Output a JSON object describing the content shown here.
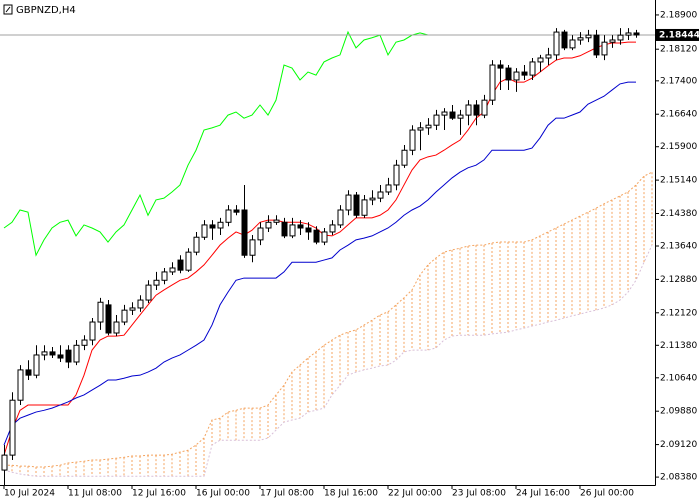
{
  "chart_data": {
    "type": "candlestick",
    "title": "GBPNZD,H4",
    "categories": [
      "10 Jul 2024",
      null,
      null,
      null,
      null,
      null,
      null,
      null,
      "11 Jul 08:00",
      null,
      null,
      null,
      null,
      null,
      null,
      null,
      "12 Jul 16:00",
      null,
      null,
      null,
      null,
      null,
      null,
      null,
      "16 Jul 00:00",
      null,
      null,
      null,
      null,
      null,
      null,
      null,
      "17 Jul 08:00",
      null,
      null,
      null,
      null,
      null,
      null,
      null,
      "18 Jul 16:00",
      null,
      null,
      null,
      null,
      null,
      null,
      null,
      "22 Jul 00:00",
      null,
      null,
      null,
      null,
      null,
      null,
      null,
      "23 Jul 08:00",
      null,
      null,
      null,
      null,
      null,
      null,
      null,
      "24 Jul 16:00",
      null,
      null,
      null,
      null,
      null,
      null,
      null,
      "26 Jul 00:00",
      null,
      null,
      null,
      null,
      null,
      null,
      null,
      null,
      null
    ],
    "open": [
      2.0854,
      2.0888,
      2.1013,
      2.1082,
      2.107,
      2.1116,
      2.1123,
      2.1116,
      2.1127,
      2.11,
      2.1138,
      2.115,
      2.1191,
      2.123,
      2.1166,
      2.1191,
      2.1218,
      2.1223,
      2.1241,
      2.1275,
      2.1286,
      2.1305,
      2.1332,
      2.1309,
      2.135,
      2.1384,
      2.1412,
      2.1405,
      2.1418,
      2.1446,
      2.1446,
      2.1343,
      2.1378,
      2.1405,
      2.1418,
      2.1418,
      2.1387,
      2.1412,
      2.1405,
      2.14,
      2.1373,
      2.1396,
      2.1412,
      2.1446,
      2.148,
      2.1434,
      2.1469,
      2.1473,
      2.1487,
      2.1503,
      2.1548,
      2.1582,
      2.1628,
      2.1633,
      2.1639,
      2.1662,
      2.1669,
      2.1655,
      2.1662,
      2.1685,
      2.1662,
      2.1696,
      2.1776,
      2.1769,
      2.1742,
      2.176,
      2.1753,
      2.1783,
      2.1792,
      2.1799,
      2.1851,
      2.1815,
      2.1833,
      2.1838,
      2.1844,
      2.1799,
      2.1828,
      2.1833,
      2.1844,
      2.1849,
      null,
      null
    ],
    "high": [
      2.0911,
      2.1031,
      2.1093,
      2.1104,
      2.1138,
      2.1138,
      2.1134,
      2.1138,
      2.1138,
      2.115,
      2.1161,
      2.12,
      2.1246,
      2.1241,
      2.1207,
      2.123,
      2.1236,
      2.1252,
      2.1286,
      2.1305,
      2.1314,
      2.1327,
      2.1343,
      2.1359,
      2.1396,
      2.1423,
      2.1423,
      2.1428,
      2.1457,
      2.1457,
      2.1503,
      2.1389,
      2.1418,
      2.1434,
      2.1434,
      2.1428,
      2.1428,
      2.1423,
      2.1418,
      2.1409,
      2.1405,
      2.1423,
      2.1457,
      2.1491,
      2.1487,
      2.148,
      2.1491,
      2.1503,
      2.1519,
      2.156,
      2.1594,
      2.1639,
      2.1646,
      2.1655,
      2.1674,
      2.1678,
      2.1685,
      2.1674,
      2.1696,
      2.1696,
      2.1708,
      2.1787,
      2.1787,
      2.1776,
      2.1769,
      2.1776,
      2.1792,
      2.1799,
      2.1815,
      2.186,
      2.1856,
      2.1844,
      2.1851,
      2.1856,
      2.1856,
      2.1844,
      2.1844,
      2.186,
      2.186,
      2.1856,
      null,
      null
    ],
    "low": [
      2.082,
      2.0877,
      2.1002,
      2.1059,
      2.1063,
      2.1104,
      2.1109,
      2.11,
      2.1086,
      2.1093,
      2.1127,
      2.1138,
      2.1173,
      2.1161,
      2.1159,
      2.1184,
      2.1207,
      2.1214,
      2.1234,
      2.1264,
      2.1277,
      2.1298,
      2.1302,
      2.1305,
      2.1343,
      2.1378,
      2.1378,
      2.1389,
      2.1409,
      2.1434,
      2.1337,
      2.1327,
      2.1366,
      2.1396,
      2.1412,
      2.1382,
      2.1382,
      2.1389,
      2.1378,
      2.1368,
      2.1366,
      2.1389,
      2.1405,
      2.1434,
      2.1428,
      2.1428,
      2.1457,
      2.1464,
      2.148,
      2.1491,
      2.1542,
      2.1571,
      2.1582,
      2.1617,
      2.1628,
      2.1628,
      2.1651,
      2.1617,
      2.1639,
      2.1639,
      2.1655,
      2.1685,
      2.1719,
      2.1719,
      2.1715,
      2.1742,
      2.1742,
      2.176,
      2.1776,
      2.1787,
      2.181,
      2.181,
      2.1822,
      2.1828,
      2.1792,
      2.1787,
      2.1815,
      2.1822,
      2.1833,
      2.1838,
      null,
      null
    ],
    "close": [
      2.0888,
      2.1013,
      2.1082,
      2.107,
      2.1116,
      2.1123,
      2.1116,
      2.1109,
      2.11,
      2.1138,
      2.115,
      2.1191,
      2.1236,
      2.1166,
      2.1191,
      2.1218,
      2.1223,
      2.1241,
      2.1275,
      2.1286,
      2.1305,
      2.1314,
      2.1309,
      2.135,
      2.1384,
      2.1412,
      2.1405,
      2.1418,
      2.1446,
      2.1441,
      2.1343,
      2.1378,
      2.1405,
      2.1418,
      2.1423,
      2.1387,
      2.1412,
      2.1405,
      2.1396,
      2.1373,
      2.1396,
      2.1412,
      2.1446,
      2.148,
      2.1434,
      2.1469,
      2.1473,
      2.1487,
      2.1503,
      2.1548,
      2.1582,
      2.1628,
      2.1633,
      2.1639,
      2.1662,
      2.1669,
      2.1655,
      2.1662,
      2.1685,
      2.1662,
      2.1696,
      2.1776,
      2.1769,
      2.1742,
      2.176,
      2.1753,
      2.1783,
      2.1792,
      2.1799,
      2.1851,
      2.1815,
      2.1833,
      2.1838,
      2.1844,
      2.1799,
      2.1828,
      2.1833,
      2.1844,
      2.1849,
      2.18444,
      null,
      null
    ],
    "bull_color": "#ffffff",
    "bear_color": "#000000",
    "series": [
      {
        "color": "#ff0000",
        "values": [
          2.0888,
          2.0945,
          2.099,
          2.1002,
          2.1002,
          2.1002,
          2.1002,
          2.1002,
          2.1002,
          2.1025,
          2.107,
          2.1127,
          2.115,
          2.1159,
          2.1159,
          2.1161,
          2.1184,
          2.1207,
          2.123,
          2.1252,
          2.1264,
          2.1275,
          2.1286,
          2.1291,
          2.1305,
          2.1321,
          2.1343,
          2.1366,
          2.1382,
          2.1396,
          2.1389,
          2.14,
          2.1418,
          2.1423,
          2.1423,
          2.1418,
          2.1418,
          2.1418,
          2.1414,
          2.1405,
          2.1389,
          2.1387,
          2.1396,
          2.1412,
          2.1428,
          2.1428,
          2.1428,
          2.1434,
          2.1446,
          2.1469,
          2.1503,
          2.1537,
          2.156,
          2.1567,
          2.1571,
          2.1582,
          2.1594,
          2.1605,
          2.1628,
          2.1655,
          2.1669,
          2.1708,
          2.1737,
          2.1746,
          2.1737,
          2.1737,
          2.1746,
          2.176,
          2.1774,
          2.1787,
          2.1792,
          2.1792,
          2.1797,
          2.1806,
          2.1815,
          2.1822,
          2.1826,
          2.1826,
          2.1828,
          2.1828,
          null,
          null
        ]
      },
      {
        "color": "#0000cd",
        "values": [
          2.0911,
          2.0956,
          2.0972,
          2.0979,
          2.0986,
          2.099,
          2.0995,
          2.1002,
          2.1009,
          2.1018,
          2.1025,
          2.1036,
          2.1047,
          2.1059,
          2.1059,
          2.1063,
          2.1068,
          2.107,
          2.1077,
          2.1086,
          2.11,
          2.1109,
          2.1116,
          2.1127,
          2.1138,
          2.115,
          2.1184,
          2.123,
          2.1259,
          2.1286,
          2.1291,
          2.1291,
          2.1291,
          2.1291,
          2.1291,
          2.1305,
          2.1327,
          2.1327,
          2.1327,
          2.1327,
          2.1332,
          2.1337,
          2.1355,
          2.1366,
          2.1378,
          2.1382,
          2.1387,
          2.1396,
          2.1405,
          2.1418,
          2.1434,
          2.1446,
          2.1455,
          2.1469,
          2.1487,
          2.1503,
          2.1519,
          2.1532,
          2.1542,
          2.1548,
          2.156,
          2.1582,
          2.1582,
          2.1582,
          2.1582,
          2.1582,
          2.1587,
          2.161,
          2.1639,
          2.1655,
          2.1655,
          2.1662,
          2.1669,
          2.1687,
          2.1696,
          2.1705,
          2.1719,
          2.1733,
          2.1737,
          2.1737,
          null,
          null
        ]
      },
      {
        "color": "#00ff00",
        "values": [
          2.1405,
          2.1418,
          2.1446,
          2.1441,
          2.1343,
          2.1378,
          2.1405,
          2.1418,
          2.1423,
          2.1387,
          2.1412,
          2.1405,
          2.1396,
          2.1373,
          2.1396,
          2.1412,
          2.1446,
          2.148,
          2.1434,
          2.1469,
          2.1473,
          2.1487,
          2.1503,
          2.1548,
          2.1582,
          2.1628,
          2.1633,
          2.1639,
          2.1662,
          2.1669,
          2.1655,
          2.1662,
          2.1685,
          2.1662,
          2.1696,
          2.1776,
          2.1769,
          2.1742,
          2.176,
          2.1753,
          2.1783,
          2.1792,
          2.1799,
          2.1851,
          2.1815,
          2.1833,
          2.1838,
          2.1844,
          2.1799,
          2.1828,
          2.1833,
          2.1844,
          2.1849,
          2.18444,
          null,
          null,
          null,
          null,
          null,
          null,
          null,
          null,
          null,
          null,
          null,
          null,
          null,
          null,
          null,
          null,
          null,
          null,
          null,
          null,
          null,
          null,
          null,
          null,
          null,
          null,
          null,
          null
        ]
      }
    ],
    "cloud": {
      "span_a": {
        "color": "#f4a460",
        "values": [
          2.0865,
          2.0865,
          2.0863,
          2.0863,
          2.0861,
          2.0861,
          2.0863,
          2.0865,
          2.087,
          2.0872,
          2.0874,
          2.0877,
          2.0877,
          2.0879,
          2.0881,
          2.0883,
          2.0886,
          2.0886,
          2.0888,
          2.0888,
          2.0888,
          2.089,
          2.0895,
          2.0899,
          2.0911,
          2.0927,
          2.0968,
          2.0972,
          2.0986,
          2.099,
          2.0995,
          2.0995,
          2.0995,
          2.1002,
          2.1025,
          2.1047,
          2.1077,
          2.1093,
          2.1109,
          2.1123,
          2.1138,
          2.115,
          2.1161,
          2.1168,
          2.1173,
          2.1184,
          2.1195,
          2.1207,
          2.1214,
          2.123,
          2.1246,
          2.1264,
          2.1298,
          2.1321,
          2.1337,
          2.135,
          2.1355,
          2.1359,
          2.1364,
          2.1366,
          2.1366,
          2.1371,
          2.1373,
          2.1373,
          2.1373,
          2.1373,
          2.1378,
          2.1387,
          2.1396,
          2.1405,
          2.1414,
          2.1423,
          2.1432,
          2.1441,
          2.145,
          2.146,
          2.1469,
          2.1478,
          2.1487,
          2.1503,
          2.1523,
          2.1532
        ]
      },
      "span_b": {
        "color": "#d8bfd8",
        "values": [
          2.0854,
          2.0849,
          2.0845,
          2.0842,
          2.084,
          2.084,
          2.084,
          2.084,
          2.084,
          2.084,
          2.084,
          2.084,
          2.084,
          2.084,
          2.084,
          2.084,
          2.084,
          2.084,
          2.084,
          2.084,
          2.084,
          2.084,
          2.084,
          2.084,
          2.084,
          2.084,
          2.0911,
          2.0922,
          2.0922,
          2.0922,
          2.0922,
          2.0922,
          2.0922,
          2.0927,
          2.0945,
          2.0963,
          2.0968,
          2.0972,
          2.0986,
          2.099,
          2.0995,
          2.1025,
          2.1047,
          2.107,
          2.1077,
          2.1082,
          2.1086,
          2.1091,
          2.1093,
          2.1104,
          2.1123,
          2.1127,
          2.1127,
          2.1127,
          2.1132,
          2.115,
          2.1159,
          2.1161,
          2.1161,
          2.1161,
          2.1161,
          2.1164,
          2.1166,
          2.1168,
          2.1173,
          2.1177,
          2.1182,
          2.1186,
          2.1191,
          2.1195,
          2.12,
          2.1205,
          2.1209,
          2.1214,
          2.1218,
          2.1223,
          2.123,
          2.1241,
          2.1259,
          2.1286,
          2.1327,
          2.1366
        ]
      }
    },
    "last_price": 2.18444,
    "ylim": [
      2.082,
      2.1924
    ],
    "yticks": [
      {
        "value": 2.189,
        "label": "2.18900"
      },
      {
        "value": 2.1812,
        "label": "2.18120"
      },
      {
        "value": 2.174,
        "label": "2.17400"
      },
      {
        "value": 2.1664,
        "label": "2.16640"
      },
      {
        "value": 2.159,
        "label": "2.15900"
      },
      {
        "value": 2.1514,
        "label": "2.15140"
      },
      {
        "value": 2.1438,
        "label": "2.14380"
      },
      {
        "value": 2.1364,
        "label": "2.13640"
      },
      {
        "value": 2.1288,
        "label": "2.12880"
      },
      {
        "value": 2.1212,
        "label": "2.12120"
      },
      {
        "value": 2.1138,
        "label": "2.11380"
      },
      {
        "value": 2.1064,
        "label": "2.10640"
      },
      {
        "value": 2.0988,
        "label": "2.09880"
      },
      {
        "value": 2.0912,
        "label": "2.09120"
      },
      {
        "value": 2.0838,
        "label": "2.08380"
      }
    ]
  }
}
